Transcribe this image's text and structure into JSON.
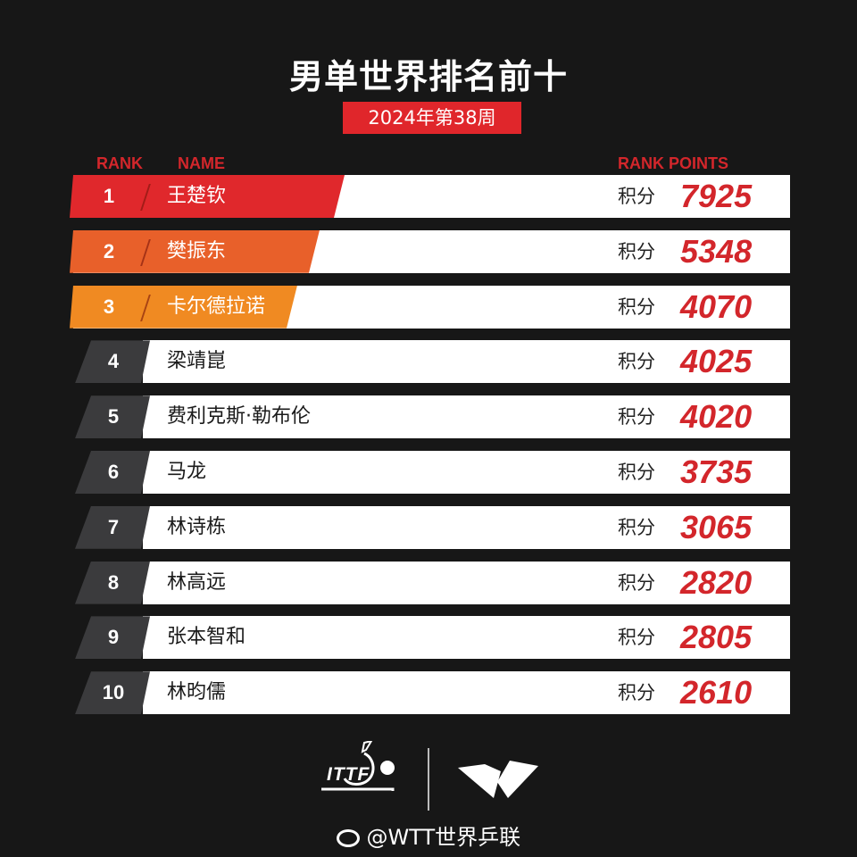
{
  "title": "男单世界排名前十",
  "week": "2024年第38周",
  "headers": {
    "rank": "RANK",
    "name": "NAME",
    "points": "RANK POINTS"
  },
  "points_label": "积分",
  "colors": {
    "accent": "#d3262b",
    "rank1": "#e0282c",
    "rank2": "#e8602a",
    "rank3": "#f08a22",
    "other": "#3b3b3d"
  },
  "rows": [
    {
      "rank": "1",
      "name": "王楚钦",
      "points": "7925"
    },
    {
      "rank": "2",
      "name": "樊振东",
      "points": "5348"
    },
    {
      "rank": "3",
      "name": "卡尔德拉诺",
      "points": "4070"
    },
    {
      "rank": "4",
      "name": "梁靖崑",
      "points": "4025"
    },
    {
      "rank": "5",
      "name": "费利克斯·勒布伦",
      "points": "4020"
    },
    {
      "rank": "6",
      "name": "马龙",
      "points": "3735"
    },
    {
      "rank": "7",
      "name": "林诗栋",
      "points": "3065"
    },
    {
      "rank": "8",
      "name": "林高远",
      "points": "2820"
    },
    {
      "rank": "9",
      "name": "张本智和",
      "points": "2805"
    },
    {
      "rank": "10",
      "name": "林昀儒",
      "points": "2610"
    }
  ],
  "footer": {
    "logo1": "ITTF",
    "logo2": "WTT",
    "weibo_handle": "@WTT世界乒联"
  }
}
